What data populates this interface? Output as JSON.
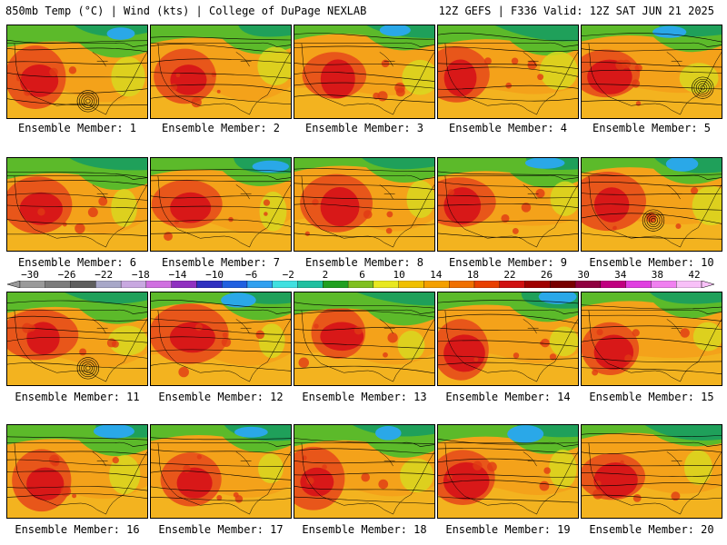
{
  "header": {
    "left": "850mb Temp (°C) | Wind (kts) | College of DuPage NEXLAB",
    "right": "12Z GEFS | F336 Valid: 12Z SAT JUN 21 2025"
  },
  "label_prefix": "Ensemble Member: ",
  "members": [
    "1",
    "2",
    "3",
    "4",
    "5",
    "6",
    "7",
    "8",
    "9",
    "10",
    "11",
    "12",
    "13",
    "14",
    "15",
    "16",
    "17",
    "18",
    "19",
    "20"
  ],
  "colorbar": {
    "ticks": [
      "-30",
      "-26",
      "-22",
      "-18",
      "-14",
      "-10",
      "-6",
      "-2",
      "2",
      "6",
      "10",
      "14",
      "18",
      "22",
      "26",
      "30",
      "34",
      "38",
      "42"
    ],
    "colors": [
      "#9a9a9a",
      "#7c7c7c",
      "#5e5e5e",
      "#a8a8c8",
      "#c8a8e0",
      "#d070e0",
      "#9030c0",
      "#3030c0",
      "#2060e0",
      "#30a0f0",
      "#40e0e0",
      "#20c0a0",
      "#20a020",
      "#80c020",
      "#e8e820",
      "#f0c000",
      "#f4a000",
      "#f07000",
      "#e84000",
      "#d01010",
      "#a00000",
      "#780000",
      "#900040",
      "#c00080",
      "#e040e0",
      "#f080f0",
      "#f8c0f8"
    ]
  }
}
